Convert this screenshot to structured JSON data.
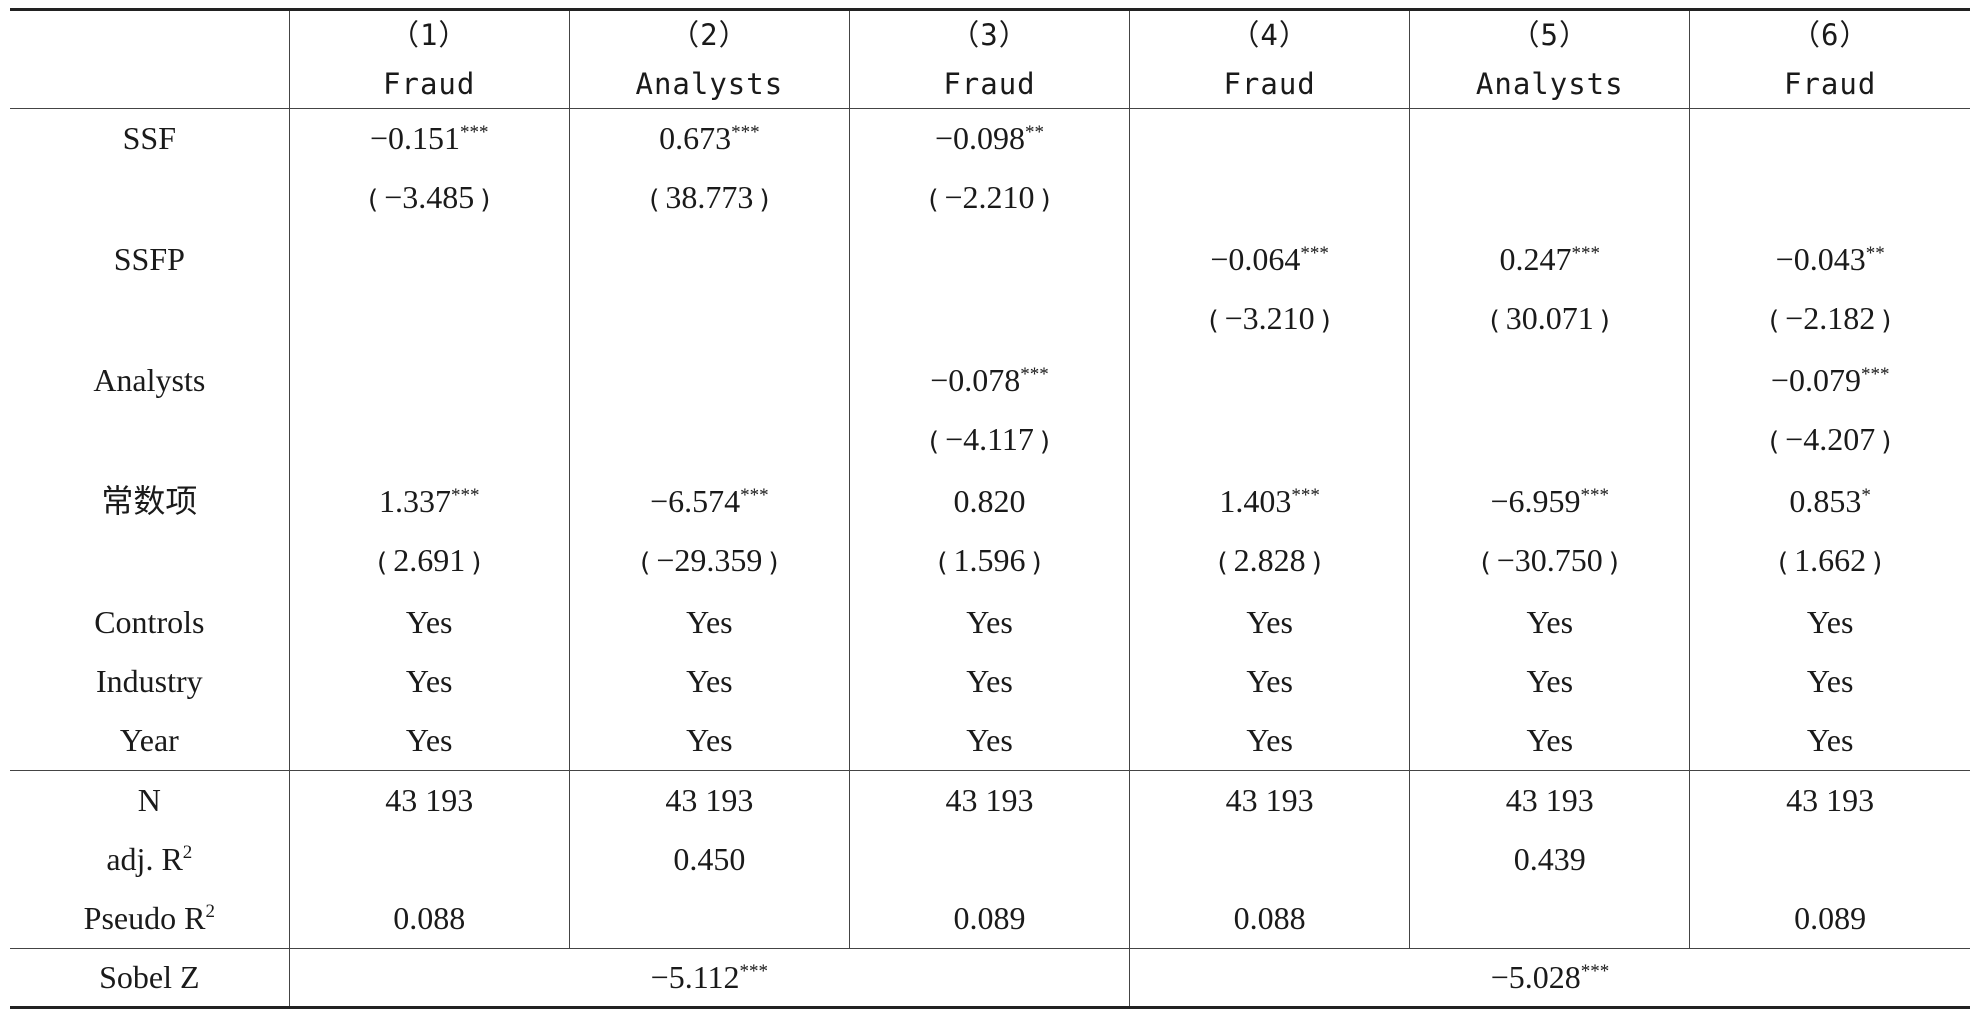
{
  "columns": [
    {
      "num": "（1）",
      "dep": "Fraud"
    },
    {
      "num": "（2）",
      "dep": "Analysts"
    },
    {
      "num": "（3）",
      "dep": "Fraud"
    },
    {
      "num": "（4）",
      "dep": "Fraud"
    },
    {
      "num": "（5）",
      "dep": "Analysts"
    },
    {
      "num": "（6）",
      "dep": "Fraud"
    }
  ],
  "rows": {
    "ssf": {
      "label": "SSF",
      "coef": [
        {
          "v": "−0.151",
          "s": "***"
        },
        {
          "v": "0.673",
          "s": "***"
        },
        {
          "v": "−0.098",
          "s": "**"
        },
        {
          "v": "",
          "s": ""
        },
        {
          "v": "",
          "s": ""
        },
        {
          "v": "",
          "s": ""
        }
      ],
      "t": [
        "−3.485",
        "38.773",
        "−2.210",
        "",
        "",
        ""
      ]
    },
    "ssfp": {
      "label": "SSFP",
      "coef": [
        {
          "v": "",
          "s": ""
        },
        {
          "v": "",
          "s": ""
        },
        {
          "v": "",
          "s": ""
        },
        {
          "v": "−0.064",
          "s": "***"
        },
        {
          "v": "0.247",
          "s": "***"
        },
        {
          "v": "−0.043",
          "s": "**"
        }
      ],
      "t": [
        "",
        "",
        "",
        "−3.210",
        "30.071",
        "−2.182"
      ]
    },
    "analysts": {
      "label": "Analysts",
      "coef": [
        {
          "v": "",
          "s": ""
        },
        {
          "v": "",
          "s": ""
        },
        {
          "v": "−0.078",
          "s": "***"
        },
        {
          "v": "",
          "s": ""
        },
        {
          "v": "",
          "s": ""
        },
        {
          "v": "−0.079",
          "s": "***"
        }
      ],
      "t": [
        "",
        "",
        "−4.117",
        "",
        "",
        "−4.207"
      ]
    },
    "constant": {
      "label": "常数项",
      "coef": [
        {
          "v": "1.337",
          "s": "***"
        },
        {
          "v": "−6.574",
          "s": "***"
        },
        {
          "v": "0.820",
          "s": ""
        },
        {
          "v": "1.403",
          "s": "***"
        },
        {
          "v": "−6.959",
          "s": "***"
        },
        {
          "v": "0.853",
          "s": "*"
        }
      ],
      "t": [
        "2.691",
        "−29.359",
        "1.596",
        "2.828",
        "−30.750",
        "1.662"
      ]
    },
    "controls": {
      "label": "Controls",
      "vals": [
        "Yes",
        "Yes",
        "Yes",
        "Yes",
        "Yes",
        "Yes"
      ]
    },
    "industry": {
      "label": "Industry",
      "vals": [
        "Yes",
        "Yes",
        "Yes",
        "Yes",
        "Yes",
        "Yes"
      ]
    },
    "year": {
      "label": "Year",
      "vals": [
        "Yes",
        "Yes",
        "Yes",
        "Yes",
        "Yes",
        "Yes"
      ]
    },
    "n": {
      "label": "N",
      "vals": [
        "43 193",
        "43 193",
        "43 193",
        "43 193",
        "43 193",
        "43 193"
      ]
    },
    "adjr2": {
      "label": "adj. R",
      "sup": "2",
      "vals": [
        "",
        "0.450",
        "",
        "",
        "0.439",
        ""
      ]
    },
    "pseudor2": {
      "label": "Pseudo R",
      "sup": "2",
      "vals": [
        "0.088",
        "",
        "0.089",
        "0.088",
        "",
        "0.089"
      ]
    },
    "sobel": {
      "label": "Sobel Z",
      "groups": [
        {
          "v": "−5.112",
          "s": "***"
        },
        {
          "v": "−5.028",
          "s": "***"
        }
      ]
    }
  }
}
